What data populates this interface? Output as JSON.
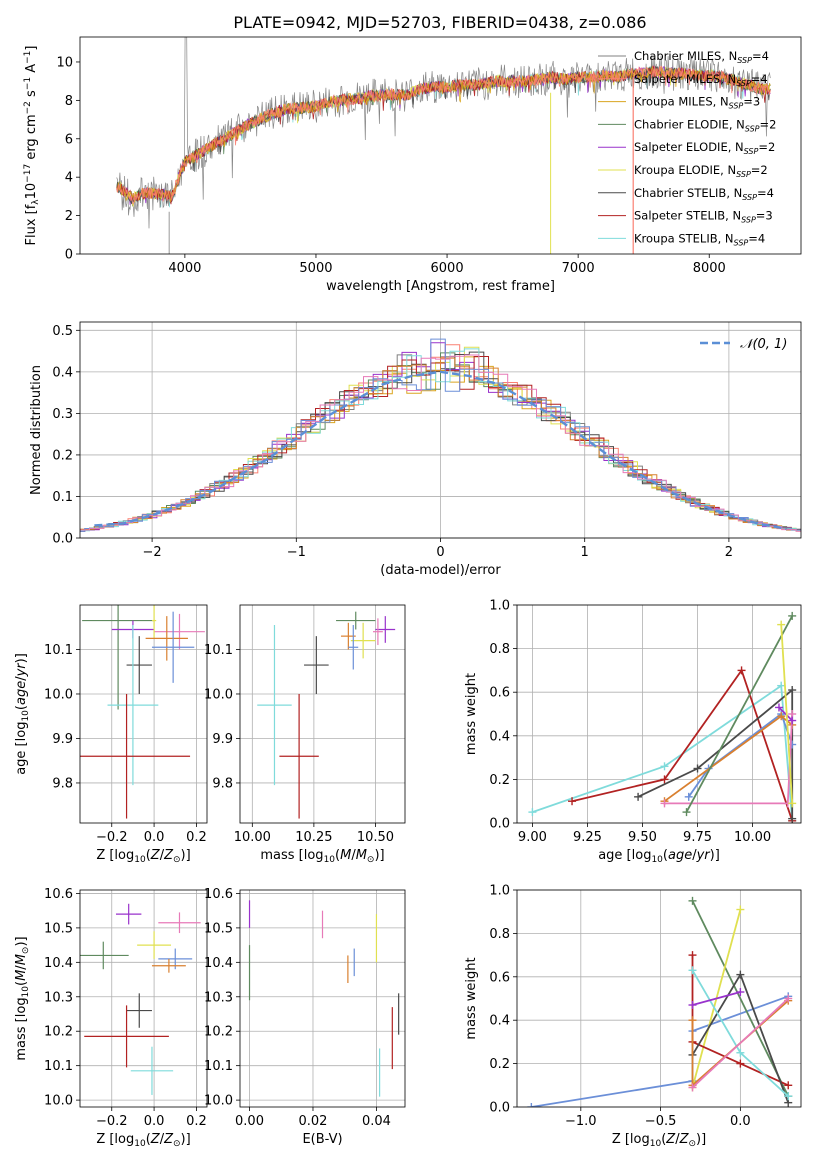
{
  "figure": {
    "title": "PLATE=0942, MJD=52703, FIBERID=0438, z=0.086",
    "series": [
      {
        "name": "Chabrier MILES",
        "nssp": "4",
        "color": "#808080"
      },
      {
        "name": "Salpeter MILES",
        "nssp": "4",
        "color": "#fa8072"
      },
      {
        "name": "Kroupa MILES",
        "nssp": "3",
        "color": "#daa520"
      },
      {
        "name": "Chabrier ELODIE",
        "nssp": "2",
        "color": "#5f8a5f"
      },
      {
        "name": "Salpeter ELODIE",
        "nssp": "2",
        "color": "#9932cc"
      },
      {
        "name": "Kroupa ELODIE",
        "nssp": "2",
        "color": "#e0e050"
      },
      {
        "name": "Chabrier STELIB",
        "nssp": "4",
        "color": "#4a4a4a"
      },
      {
        "name": "Salpeter STELIB",
        "nssp": "3",
        "color": "#b22222"
      },
      {
        "name": "Kroupa STELIB",
        "nssp": "4",
        "color": "#7fdbdb"
      }
    ]
  },
  "chart_data": [
    {
      "id": "spectrum",
      "type": "line",
      "xlabel": "wavelength [Angstrom, rest frame]",
      "ylabel": "Flux [f_λ10^-17 erg cm^-2 s^-1 A^-1]",
      "xlim": [
        3200,
        8700
      ],
      "ylim": [
        0,
        11.3
      ],
      "xticks": [
        "4000",
        "5000",
        "6000",
        "7000",
        "8000"
      ],
      "yticks": [
        "0",
        "2",
        "4",
        "6",
        "8",
        "10"
      ],
      "x": [
        3500,
        3600,
        3700,
        3800,
        3900,
        4000,
        4100,
        4200,
        4300,
        4400,
        4500,
        4600,
        4700,
        4800,
        4900,
        5000,
        5100,
        5200,
        5300,
        5400,
        5500,
        5600,
        5700,
        5800,
        5900,
        6000,
        6100,
        6200,
        6300,
        6400,
        6500,
        6600,
        6700,
        6800,
        6900,
        7000,
        7100,
        7200,
        7300,
        7400,
        7500,
        7600,
        7700,
        7800,
        7900,
        8000,
        8100,
        8200,
        8300,
        8400
      ],
      "values": [
        3.5,
        2.9,
        3.2,
        3.1,
        3.0,
        4.8,
        5.2,
        5.6,
        6.0,
        6.4,
        6.8,
        7.1,
        7.4,
        7.6,
        7.6,
        7.7,
        7.9,
        8.0,
        8.1,
        8.2,
        8.3,
        8.3,
        8.3,
        8.6,
        8.7,
        8.7,
        8.8,
        8.8,
        8.9,
        9.0,
        9.0,
        9.0,
        9.1,
        9.2,
        9.1,
        9.2,
        9.2,
        9.3,
        9.2,
        9.4,
        9.4,
        9.5,
        9.4,
        9.4,
        9.3,
        9.3,
        9.2,
        9.0,
        8.8,
        8.6
      ],
      "grid": false
    },
    {
      "id": "residuals",
      "type": "line",
      "xlabel": "(data-model)/error",
      "ylabel": "Normed distribution",
      "xlim": [
        -2.5,
        2.5
      ],
      "ylim": [
        0,
        0.52
      ],
      "xticks": [
        "−2",
        "−1",
        "0",
        "1",
        "2"
      ],
      "yticks": [
        "0.0",
        "0.1",
        "0.2",
        "0.3",
        "0.4",
        "0.5"
      ],
      "legend": "N(0,1)",
      "x": [
        -2.4,
        -2.2,
        -2.0,
        -1.8,
        -1.6,
        -1.4,
        -1.2,
        -1.0,
        -0.8,
        -0.6,
        -0.4,
        -0.2,
        0.0,
        0.2,
        0.4,
        0.6,
        0.8,
        1.0,
        1.2,
        1.4,
        1.6,
        1.8,
        2.0,
        2.2,
        2.4
      ],
      "values": [
        0.03,
        0.035,
        0.055,
        0.08,
        0.11,
        0.15,
        0.19,
        0.24,
        0.29,
        0.33,
        0.37,
        0.39,
        0.4,
        0.39,
        0.37,
        0.33,
        0.29,
        0.24,
        0.19,
        0.15,
        0.11,
        0.08,
        0.055,
        0.035,
        0.022
      ],
      "grid": true
    },
    {
      "id": "age-vs-Z",
      "type": "scatter",
      "xlabel": "Z [log10(Z/Z⊙)]",
      "ylabel": "age [log10(age/yr)]",
      "xlim": [
        -0.35,
        0.25
      ],
      "ylim": [
        9.71,
        10.2
      ],
      "xticks": [
        "−0.2",
        "0.0",
        "0.2"
      ],
      "yticks": [
        "9.8",
        "9.9",
        "10.0",
        "10.1"
      ],
      "points": [
        {
          "x": -0.17,
          "y": 10.165,
          "xerr": 0.17,
          "yerr": 0.2,
          "c": "#5f8a5f"
        },
        {
          "x": -0.1,
          "y": 10.145,
          "xerr": 0.1,
          "yerr": 0.02,
          "c": "#9932cc"
        },
        {
          "x": 0.12,
          "y": 10.14,
          "xerr": 0.12,
          "yerr": 0.04,
          "c": "#e77ab8"
        },
        {
          "x": 0.0,
          "y": 10.165,
          "xerr": 0.01,
          "yerr": 0.04,
          "c": "#e0e050"
        },
        {
          "x": 0.06,
          "y": 10.125,
          "xerr": 0.1,
          "yerr": 0.05,
          "c": "#d98030"
        },
        {
          "x": 0.09,
          "y": 10.105,
          "xerr": 0.1,
          "yerr": 0.08,
          "c": "#6b8fd8"
        },
        {
          "x": -0.07,
          "y": 10.065,
          "xerr": 0.06,
          "yerr": 0.065,
          "c": "#4a4a4a"
        },
        {
          "x": -0.1,
          "y": 9.975,
          "xerr": 0.12,
          "yerr": 0.18,
          "c": "#7fdbdb"
        },
        {
          "x": -0.13,
          "y": 9.86,
          "xerr": 0.3,
          "yerr": 0.14,
          "c": "#b22222"
        }
      ],
      "grid": true
    },
    {
      "id": "age-vs-mass",
      "type": "scatter",
      "xlabel": "mass [log10(M/M⊙)]",
      "ylabel": "",
      "xlim": [
        9.95,
        10.62
      ],
      "ylim": [
        9.71,
        10.2
      ],
      "xticks": [
        "10.00",
        "10.25",
        "10.50"
      ],
      "yticks": [
        "9.8",
        "9.9",
        "10.0",
        "10.1"
      ],
      "points": [
        {
          "x": 10.42,
          "y": 10.165,
          "xerr": 0.08,
          "yerr": 0.02,
          "c": "#5f8a5f"
        },
        {
          "x": 10.54,
          "y": 10.145,
          "xerr": 0.04,
          "yerr": 0.03,
          "c": "#9932cc"
        },
        {
          "x": 10.51,
          "y": 10.14,
          "xerr": 0.02,
          "yerr": 0.03,
          "c": "#e77ab8"
        },
        {
          "x": 10.45,
          "y": 10.12,
          "xerr": 0.05,
          "yerr": 0.04,
          "c": "#e0e050"
        },
        {
          "x": 10.39,
          "y": 10.13,
          "xerr": 0.03,
          "yerr": 0.03,
          "c": "#d98030"
        },
        {
          "x": 10.41,
          "y": 10.105,
          "xerr": 0.02,
          "yerr": 0.05,
          "c": "#6b8fd8"
        },
        {
          "x": 10.26,
          "y": 10.065,
          "xerr": 0.05,
          "yerr": 0.065,
          "c": "#4a4a4a"
        },
        {
          "x": 10.09,
          "y": 9.975,
          "xerr": 0.07,
          "yerr": 0.18,
          "c": "#7fdbdb"
        },
        {
          "x": 10.19,
          "y": 9.86,
          "xerr": 0.08,
          "yerr": 0.14,
          "c": "#b22222"
        }
      ],
      "grid": true
    },
    {
      "id": "weight-vs-age",
      "type": "line",
      "xlabel": "age [log10(age/yr)]",
      "ylabel": "mass weight",
      "xlim": [
        8.93,
        10.22
      ],
      "ylim": [
        0,
        1.0
      ],
      "xticks": [
        "9.00",
        "9.25",
        "9.50",
        "9.75",
        "10.00"
      ],
      "yticks": [
        "0.0",
        "0.2",
        "0.4",
        "0.6",
        "0.8",
        "1.0"
      ],
      "series": [
        {
          "c": "#7fdbdb",
          "points": [
            [
              9.0,
              0.05
            ],
            [
              9.6,
              0.26
            ],
            [
              10.13,
              0.63
            ],
            [
              10.18,
              0.01
            ]
          ]
        },
        {
          "c": "#b22222",
          "points": [
            [
              9.18,
              0.1
            ],
            [
              9.6,
              0.2
            ],
            [
              9.95,
              0.7
            ],
            [
              10.18,
              0.01
            ]
          ]
        },
        {
          "c": "#4a4a4a",
          "points": [
            [
              9.48,
              0.12
            ],
            [
              9.75,
              0.25
            ],
            [
              10.18,
              0.61
            ],
            [
              10.18,
              0.02
            ]
          ]
        },
        {
          "c": "#6b8fd8",
          "points": [
            [
              9.71,
              0.12
            ],
            [
              9.8,
              0.25
            ],
            [
              10.13,
              0.5
            ],
            [
              10.18,
              0.36
            ]
          ]
        },
        {
          "c": "#d98030",
          "points": [
            [
              9.6,
              0.1
            ],
            [
              10.13,
              0.49
            ],
            [
              10.18,
              0.45
            ]
          ]
        },
        {
          "c": "#e77ab8",
          "points": [
            [
              9.6,
              0.09
            ],
            [
              10.16,
              0.09
            ],
            [
              10.18,
              0.5
            ]
          ]
        },
        {
          "c": "#9932cc",
          "points": [
            [
              10.12,
              0.53
            ],
            [
              10.18,
              0.47
            ]
          ]
        },
        {
          "c": "#5f8a5f",
          "points": [
            [
              9.7,
              0.05
            ],
            [
              10.18,
              0.95
            ]
          ]
        },
        {
          "c": "#e0e050",
          "points": [
            [
              10.13,
              0.91
            ],
            [
              10.18,
              0.09
            ]
          ]
        }
      ],
      "grid": true
    },
    {
      "id": "mass-vs-Z",
      "type": "scatter",
      "xlabel": "Z [log10(Z/Z⊙)]",
      "ylabel": "mass [log10(M/M⊙)]",
      "xlim": [
        -0.35,
        0.25
      ],
      "ylim": [
        9.98,
        10.61
      ],
      "xticks": [
        "−0.2",
        "0.0",
        "0.2"
      ],
      "yticks": [
        "10.0",
        "10.1",
        "10.2",
        "10.3",
        "10.4",
        "10.5",
        "10.6"
      ],
      "points": [
        {
          "x": -0.12,
          "y": 10.54,
          "xerr": 0.06,
          "yerr": 0.03,
          "c": "#9932cc"
        },
        {
          "x": 0.12,
          "y": 10.515,
          "xerr": 0.1,
          "yerr": 0.03,
          "c": "#e77ab8"
        },
        {
          "x": 0.0,
          "y": 10.45,
          "xerr": 0.08,
          "yerr": 0.04,
          "c": "#e0e050"
        },
        {
          "x": -0.24,
          "y": 10.42,
          "xerr": 0.12,
          "yerr": 0.04,
          "c": "#5f8a5f"
        },
        {
          "x": 0.1,
          "y": 10.41,
          "xerr": 0.08,
          "yerr": 0.03,
          "c": "#6b8fd8"
        },
        {
          "x": 0.07,
          "y": 10.39,
          "xerr": 0.08,
          "yerr": 0.02,
          "c": "#d98030"
        },
        {
          "x": -0.07,
          "y": 10.26,
          "xerr": 0.06,
          "yerr": 0.05,
          "c": "#4a4a4a"
        },
        {
          "x": -0.13,
          "y": 10.185,
          "xerr": 0.2,
          "yerr": 0.09,
          "c": "#b22222"
        },
        {
          "x": -0.01,
          "y": 10.085,
          "xerr": 0.1,
          "yerr": 0.07,
          "c": "#7fdbdb"
        }
      ],
      "grid": true
    },
    {
      "id": "mass-vs-ebv",
      "type": "scatter",
      "xlabel": "E(B-V)",
      "ylabel": "",
      "xlim": [
        -0.003,
        0.049
      ],
      "ylim": [
        9.98,
        10.61
      ],
      "xticks": [
        "0.00",
        "0.02",
        "0.04"
      ],
      "yticks": [
        "10.0",
        "10.1",
        "10.2",
        "10.3",
        "10.4",
        "10.5",
        "10.6"
      ],
      "points": [
        {
          "x": 0.0,
          "y": 10.54,
          "xerr": 0,
          "yerr": 0.04,
          "c": "#9932cc"
        },
        {
          "x": 0.0,
          "y": 10.37,
          "xerr": 0,
          "yerr": 0.08,
          "c": "#5f8a5f"
        },
        {
          "x": 0.023,
          "y": 10.51,
          "xerr": 0,
          "yerr": 0.04,
          "c": "#e77ab8"
        },
        {
          "x": 0.04,
          "y": 10.47,
          "xerr": 0,
          "yerr": 0.07,
          "c": "#e0e050"
        },
        {
          "x": 0.033,
          "y": 10.4,
          "xerr": 0,
          "yerr": 0.04,
          "c": "#6b8fd8"
        },
        {
          "x": 0.031,
          "y": 10.38,
          "xerr": 0,
          "yerr": 0.04,
          "c": "#d98030"
        },
        {
          "x": 0.047,
          "y": 10.25,
          "xerr": 0,
          "yerr": 0.06,
          "c": "#4a4a4a"
        },
        {
          "x": 0.045,
          "y": 10.18,
          "xerr": 0,
          "yerr": 0.09,
          "c": "#b22222"
        },
        {
          "x": 0.041,
          "y": 10.08,
          "xerr": 0,
          "yerr": 0.07,
          "c": "#7fdbdb"
        }
      ],
      "grid": true
    },
    {
      "id": "weight-vs-Z",
      "type": "line",
      "xlabel": "Z [log10(Z/Z⊙)]",
      "ylabel": "mass weight",
      "xlim": [
        -1.4,
        0.38
      ],
      "ylim": [
        0,
        1.0
      ],
      "xticks": [
        "−1.0",
        "−0.5",
        "0.0"
      ],
      "yticks": [
        "0.0",
        "0.2",
        "0.4",
        "0.6",
        "0.8",
        "1.0"
      ],
      "series": [
        {
          "c": "#6b8fd8",
          "points": [
            [
              -1.31,
              0.0
            ],
            [
              -0.3,
              0.12
            ],
            [
              -0.3,
              0.35
            ],
            [
              0.3,
              0.51
            ]
          ]
        },
        {
          "c": "#5f8a5f",
          "points": [
            [
              -0.3,
              0.95
            ],
            [
              0.3,
              0.05
            ]
          ]
        },
        {
          "c": "#e0e050",
          "points": [
            [
              0.0,
              0.91
            ],
            [
              -0.3,
              0.09
            ]
          ]
        },
        {
          "c": "#b22222",
          "points": [
            [
              -0.3,
              0.7
            ],
            [
              -0.3,
              0.3
            ],
            [
              0.0,
              0.2
            ],
            [
              0.3,
              0.1
            ]
          ]
        },
        {
          "c": "#4a4a4a",
          "points": [
            [
              -0.3,
              0.24
            ],
            [
              0.0,
              0.61
            ],
            [
              0.3,
              0.02
            ]
          ]
        },
        {
          "c": "#7fdbdb",
          "points": [
            [
              -0.3,
              0.63
            ],
            [
              0.0,
              0.25
            ],
            [
              0.3,
              0.05
            ]
          ]
        },
        {
          "c": "#9932cc",
          "points": [
            [
              -0.3,
              0.47
            ],
            [
              0.0,
              0.53
            ]
          ]
        },
        {
          "c": "#d98030",
          "points": [
            [
              -0.3,
              0.4
            ],
            [
              -0.3,
              0.1
            ],
            [
              0.3,
              0.49
            ]
          ]
        },
        {
          "c": "#e77ab8",
          "points": [
            [
              -0.3,
              0.09
            ],
            [
              0.3,
              0.5
            ]
          ]
        }
      ],
      "grid": true
    }
  ]
}
